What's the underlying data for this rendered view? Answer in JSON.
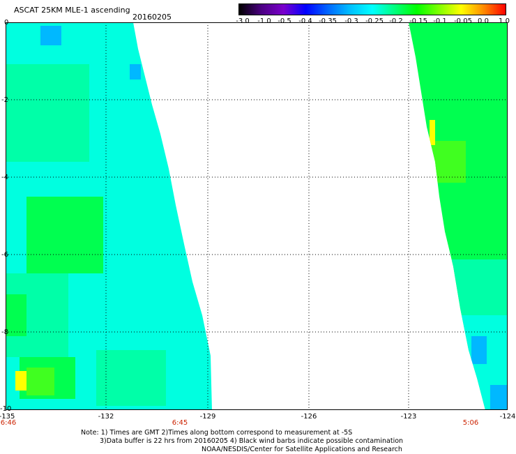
{
  "header": {
    "title": "ASCAT 25KM MLE-1 ascending",
    "date": "20160205"
  },
  "colorbar": {
    "ticks": [
      "-3.0",
      "-1.0",
      "-0.5",
      "-0.4",
      "-0.35",
      "-0.3",
      "-0.25",
      "-0.2",
      "-0.15",
      "-0.1",
      "-0.05",
      "0.0",
      "1.0"
    ],
    "colors": [
      "#000000",
      "#4b0082",
      "#7a00cc",
      "#0000ff",
      "#0066ff",
      "#00bfff",
      "#00ffff",
      "#00ff7f",
      "#00ff00",
      "#7fff00",
      "#ffff00",
      "#ff8c00",
      "#ff0000"
    ]
  },
  "map": {
    "lon_range": [
      -135,
      -124
    ],
    "lat_range": [
      -10,
      0
    ],
    "x_ticks": [
      "-135",
      "-132",
      "-129",
      "-126",
      "-123",
      "-124"
    ],
    "y_ticks": [
      "0",
      "-2",
      "-4",
      "-6",
      "-8",
      "-10"
    ],
    "times": [
      "6:46",
      "6:45",
      "5:06"
    ],
    "swath_colors": {
      "cyan": "#00ffe0",
      "aqua_green": "#00ffa8",
      "green": "#00ff50",
      "bright_green": "#40ff20",
      "blue": "#00b8ff",
      "yellow": "#ffff00"
    }
  },
  "notes": {
    "line1": "Note: 1) Times are GMT 2)Times along bottom correspond to measurement at -5S",
    "line2": "3)Data buffer is 22 hrs from 20160205 4) Black wind barbs indicate possible contamination",
    "line3": "NOAA/NESDIS/Center for Satellite Applications and Research"
  }
}
